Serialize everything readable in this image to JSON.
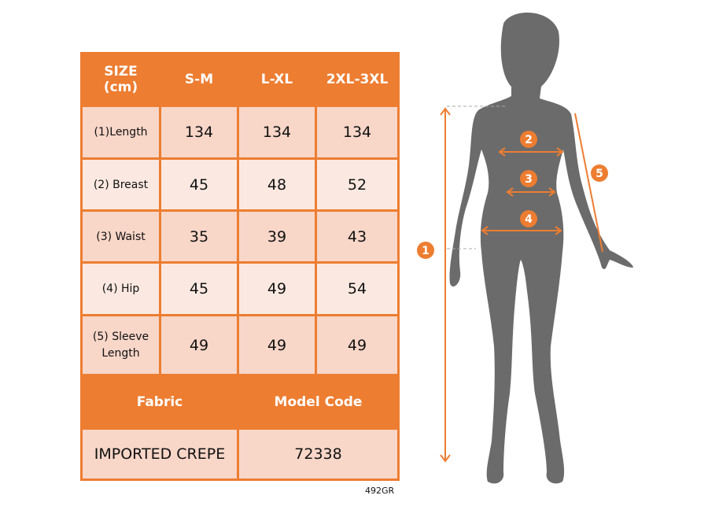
{
  "table": {
    "header": [
      "SIZE\n(cm)",
      "S-M",
      "L-XL",
      "2XL-3XL"
    ],
    "rows": [
      {
        "label": "(1)Length",
        "values": [
          "134",
          "134",
          "134"
        ]
      },
      {
        "label": "(2) Breast",
        "values": [
          "45",
          "48",
          "52"
        ]
      },
      {
        "label": "(3) Waist",
        "values": [
          "35",
          "39",
          "43"
        ]
      },
      {
        "label": "(4) Hip",
        "values": [
          "45",
          "49",
          "54"
        ]
      },
      {
        "label": "(5) Sleeve Length",
        "values": [
          "49",
          "49",
          "49"
        ]
      }
    ],
    "fabric_label": "Fabric",
    "model_code_label": "Model Code",
    "fabric": "IMPORTED CREPE",
    "model_code": "72338"
  },
  "product_code": "492GR",
  "figure": {
    "markers": [
      "1",
      "2",
      "3",
      "4",
      "5"
    ],
    "accent": "#ED7D31",
    "silhouette": "#6B6B6B"
  }
}
